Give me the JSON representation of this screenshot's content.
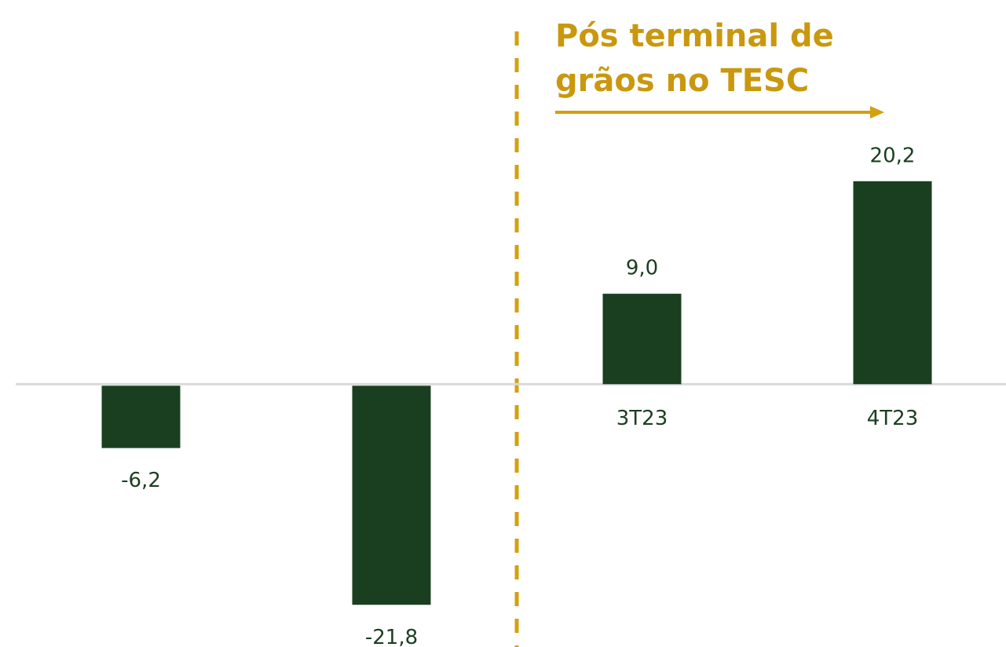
{
  "chart_data": {
    "type": "bar",
    "categories": [
      null,
      null,
      "3T23",
      "4T23"
    ],
    "values": [
      -6.2,
      -21.8,
      9.0,
      20.2
    ],
    "value_labels": [
      "-6,2",
      "-21,8",
      "9,0",
      "20,2"
    ],
    "color": "#1a3f20",
    "ylim": [
      -26,
      38
    ],
    "annotation": [
      "Pós terminal de",
      "grãos no TESC"
    ],
    "annotation_color": "#d4a00f"
  }
}
